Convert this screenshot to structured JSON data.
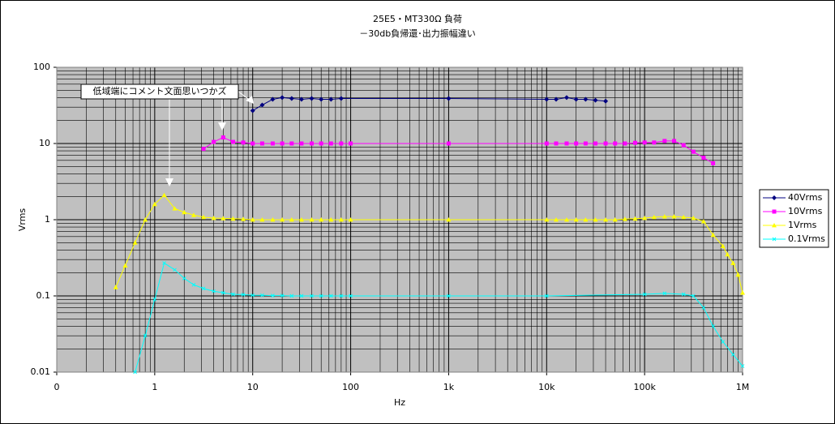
{
  "chart_data": {
    "type": "line",
    "title": "25E5・MT330Ω 負荷",
    "subtitle": "－30db負帰還･出力振幅違い",
    "x_label": "Hz",
    "y_label": "Vrms",
    "annotation": "低域端にコメント文面思いつかズ",
    "log_x": true,
    "log_y": true,
    "grid": true,
    "legend_position": "right",
    "plot_background": "#c0c0c0",
    "xlim": [
      0.1,
      1000000
    ],
    "xticks": [
      {
        "value": 0.1,
        "label": "0"
      },
      1,
      10,
      100,
      {
        "value": 1000,
        "label": "1k"
      },
      {
        "value": 10000,
        "label": "10k"
      },
      {
        "value": 100000,
        "label": "100k"
      },
      {
        "value": 1000000,
        "label": "1M"
      }
    ],
    "ylim": [
      0.01,
      100
    ],
    "yticks": [
      0.01,
      0.1,
      1,
      10,
      100
    ],
    "series": [
      {
        "name": "40Vrms",
        "color": "#000080",
        "marker": "diamond",
        "x": [
          10,
          12.5,
          16,
          20,
          25,
          31.5,
          40,
          50,
          63,
          80,
          1000,
          10000,
          12500,
          16000,
          20000,
          25000,
          31500,
          40000
        ],
        "values": [
          27,
          32,
          38,
          40,
          39,
          38,
          39,
          38,
          38,
          39,
          39,
          38,
          38,
          40,
          38,
          38,
          37,
          36
        ]
      },
      {
        "name": "10Vrms",
        "color": "#ff00ff",
        "marker": "square",
        "x": [
          3.15,
          4,
          5,
          6.3,
          8,
          10,
          12.5,
          16,
          20,
          25,
          31.5,
          40,
          50,
          63,
          80,
          100,
          1000,
          10000,
          12500,
          16000,
          20000,
          25000,
          31500,
          40000,
          50000,
          63000,
          80000,
          100000,
          125000,
          160000,
          200000,
          250000,
          315000,
          400000,
          500000
        ],
        "values": [
          8.5,
          10.5,
          12,
          10.5,
          10.3,
          10,
          10,
          10,
          10,
          10,
          10,
          10,
          10,
          10,
          10,
          10,
          10,
          10,
          10,
          10,
          10,
          10,
          10,
          10,
          10,
          10,
          10.2,
          10.3,
          10.3,
          10.8,
          10.8,
          9.5,
          7.8,
          6.5,
          5.5
        ]
      },
      {
        "name": "1Vrms",
        "color": "#ffff00",
        "marker": "triangle",
        "x": [
          0.4,
          0.5,
          0.63,
          0.8,
          1,
          1.25,
          1.6,
          2,
          2.5,
          3.15,
          4,
          5,
          6.3,
          8,
          10,
          12.5,
          16,
          20,
          25,
          31.5,
          40,
          50,
          63,
          80,
          100,
          1000,
          10000,
          12500,
          16000,
          20000,
          25000,
          31500,
          40000,
          50000,
          63000,
          80000,
          100000,
          125000,
          160000,
          200000,
          250000,
          315000,
          400000,
          500000,
          630000,
          700000,
          800000,
          900000,
          1000000
        ],
        "values": [
          0.13,
          0.25,
          0.5,
          1.0,
          1.6,
          2.1,
          1.4,
          1.25,
          1.15,
          1.08,
          1.05,
          1.04,
          1.03,
          1.02,
          1.0,
          1.0,
          1.0,
          1.0,
          1.0,
          1.0,
          1.0,
          1.0,
          1.0,
          1.0,
          1.0,
          1.0,
          1.0,
          1.0,
          1.0,
          1.0,
          1.0,
          1.0,
          1.0,
          1.0,
          1.02,
          1.03,
          1.05,
          1.08,
          1.1,
          1.1,
          1.08,
          1.05,
          0.95,
          0.63,
          0.45,
          0.35,
          0.27,
          0.19,
          0.11
        ]
      },
      {
        "name": "0.1Vrms",
        "color": "#00ffff",
        "marker": "x",
        "x": [
          0.63,
          0.8,
          1,
          1.25,
          1.6,
          2,
          2.5,
          3.15,
          4,
          5,
          6.3,
          8,
          10,
          12.5,
          16,
          20,
          25,
          31.5,
          40,
          50,
          63,
          80,
          100,
          1000,
          10000,
          100000,
          160000,
          250000,
          315000,
          400000,
          500000,
          630000,
          800000,
          1000000
        ],
        "values": [
          0.01,
          0.03,
          0.09,
          0.27,
          0.22,
          0.17,
          0.14,
          0.125,
          0.115,
          0.11,
          0.105,
          0.104,
          0.102,
          0.102,
          0.101,
          0.101,
          0.1,
          0.1,
          0.1,
          0.1,
          0.1,
          0.1,
          0.1,
          0.1,
          0.1,
          0.105,
          0.108,
          0.105,
          0.1,
          0.07,
          0.04,
          0.025,
          0.017,
          0.012
        ]
      }
    ]
  }
}
